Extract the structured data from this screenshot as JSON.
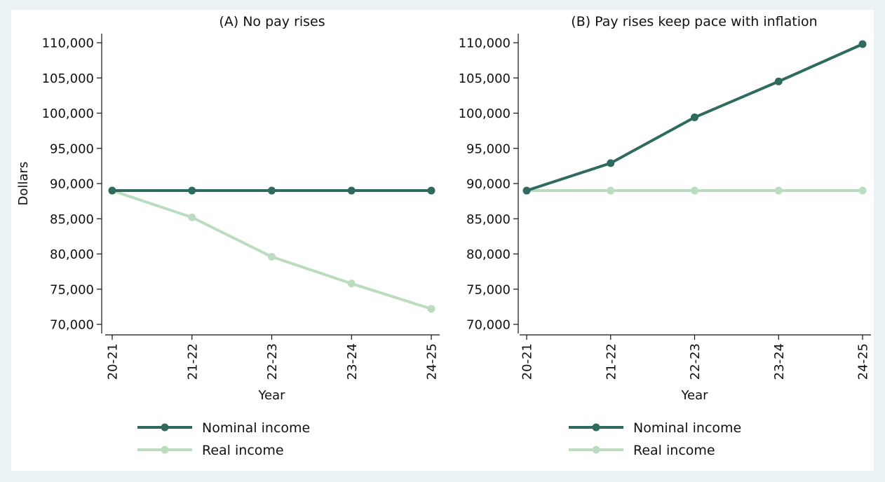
{
  "chart_data": [
    {
      "type": "line",
      "title": "(A) No pay rises",
      "xlabel": "Year",
      "ylabel": "Dollars",
      "categories": [
        "20-21",
        "21-22",
        "22-23",
        "23-24",
        "24-25"
      ],
      "ylim": [
        70000,
        110000
      ],
      "yticks": [
        70000,
        75000,
        80000,
        85000,
        90000,
        95000,
        100000,
        105000,
        110000
      ],
      "ytick_labels": [
        "70,000",
        "75,000",
        "80,000",
        "85,000",
        "90,000",
        "95,000",
        "100,000",
        "105,000",
        "110,000"
      ],
      "grid": false,
      "legend_position": "bottom",
      "series": [
        {
          "name": "Nominal income",
          "color": "#2e6b5e",
          "values": [
            89000,
            89000,
            89000,
            89000,
            89000
          ]
        },
        {
          "name": "Real income",
          "color": "#bcdcc0",
          "values": [
            89000,
            85200,
            79600,
            75800,
            72200
          ]
        }
      ]
    },
    {
      "type": "line",
      "title": "(B) Pay rises keep pace with inflation",
      "xlabel": "Year",
      "ylabel": "",
      "categories": [
        "20-21",
        "21-22",
        "22-23",
        "23-24",
        "24-25"
      ],
      "ylim": [
        70000,
        110000
      ],
      "yticks": [
        70000,
        75000,
        80000,
        85000,
        90000,
        95000,
        100000,
        105000,
        110000
      ],
      "ytick_labels": [
        "70,000",
        "75,000",
        "80,000",
        "85,000",
        "90,000",
        "95,000",
        "100,000",
        "105,000",
        "110,000"
      ],
      "grid": false,
      "legend_position": "bottom",
      "series": [
        {
          "name": "Nominal income",
          "color": "#2e6b5e",
          "values": [
            89000,
            92900,
            99400,
            104500,
            109800
          ]
        },
        {
          "name": "Real income",
          "color": "#bcdcc0",
          "values": [
            89000,
            89000,
            89000,
            89000,
            89000
          ]
        }
      ]
    }
  ]
}
